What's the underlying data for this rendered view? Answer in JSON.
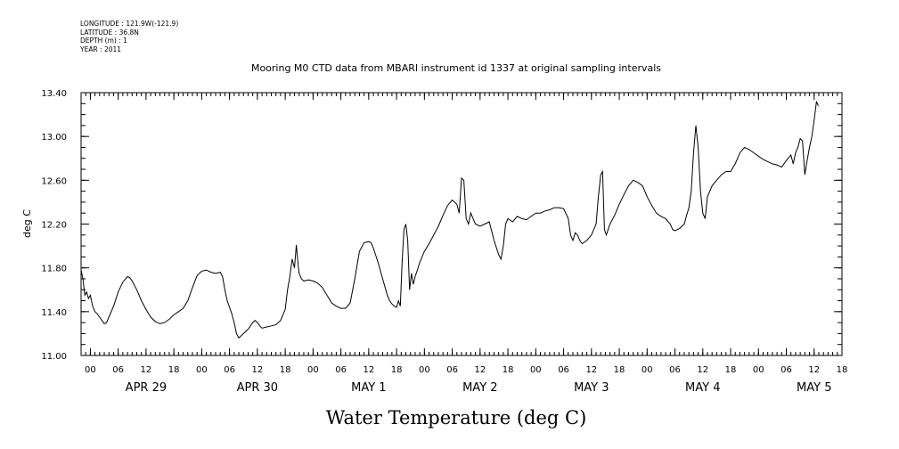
{
  "metadata": [
    "LONGITUDE : 121.9W(-121.9)",
    "LATITUDE : 36.8N",
    "DEPTH (m) : 1",
    "YEAR : 2011"
  ],
  "chart_data": {
    "type": "line",
    "title": "Mooring M0 CTD data from MBARI instrument id 1337 at original sampling intervals",
    "xlabel": "Water Temperature (deg C)",
    "ylabel": "deg C",
    "ylim": [
      11.0,
      13.4
    ],
    "yticks": [
      "11.00",
      "11.40",
      "11.80",
      "12.20",
      "12.60",
      "13.00",
      "13.40"
    ],
    "xlim_hours": [
      -2,
      162
    ],
    "hour_ticks": [
      {
        "h": 0,
        "label": "00"
      },
      {
        "h": 6,
        "label": "06"
      },
      {
        "h": 12,
        "label": "12"
      },
      {
        "h": 18,
        "label": "18"
      },
      {
        "h": 24,
        "label": "00"
      },
      {
        "h": 30,
        "label": "06"
      },
      {
        "h": 36,
        "label": "12"
      },
      {
        "h": 42,
        "label": "18"
      },
      {
        "h": 48,
        "label": "00"
      },
      {
        "h": 54,
        "label": "06"
      },
      {
        "h": 60,
        "label": "12"
      },
      {
        "h": 66,
        "label": "18"
      },
      {
        "h": 72,
        "label": "00"
      },
      {
        "h": 78,
        "label": "06"
      },
      {
        "h": 84,
        "label": "12"
      },
      {
        "h": 90,
        "label": "18"
      },
      {
        "h": 96,
        "label": "00"
      },
      {
        "h": 102,
        "label": "06"
      },
      {
        "h": 108,
        "label": "12"
      },
      {
        "h": 114,
        "label": "18"
      },
      {
        "h": 120,
        "label": "00"
      },
      {
        "h": 126,
        "label": "06"
      },
      {
        "h": 132,
        "label": "12"
      },
      {
        "h": 138,
        "label": "18"
      },
      {
        "h": 144,
        "label": "00"
      },
      {
        "h": 150,
        "label": "06"
      },
      {
        "h": 156,
        "label": "12"
      },
      {
        "h": 162,
        "label": "18"
      }
    ],
    "day_labels": [
      {
        "h": 12,
        "label": "APR 29"
      },
      {
        "h": 36,
        "label": "APR 30"
      },
      {
        "h": 60,
        "label": "MAY  1"
      },
      {
        "h": 84,
        "label": "MAY  2"
      },
      {
        "h": 108,
        "label": "MAY  3"
      },
      {
        "h": 132,
        "label": "MAY  4"
      },
      {
        "h": 156,
        "label": "MAY  5"
      }
    ],
    "series": [
      {
        "values": [
          [
            -2.0,
            11.78
          ],
          [
            -1.6,
            11.7
          ],
          [
            -1.2,
            11.55
          ],
          [
            -0.8,
            11.58
          ],
          [
            -0.4,
            11.52
          ],
          [
            0.0,
            11.55
          ],
          [
            0.5,
            11.45
          ],
          [
            1.0,
            11.4
          ],
          [
            1.5,
            11.38
          ],
          [
            2.0,
            11.35
          ],
          [
            2.5,
            11.32
          ],
          [
            3.0,
            11.29
          ],
          [
            3.5,
            11.3
          ],
          [
            4.0,
            11.35
          ],
          [
            5.0,
            11.45
          ],
          [
            6.0,
            11.58
          ],
          [
            7.0,
            11.67
          ],
          [
            8.0,
            11.72
          ],
          [
            8.5,
            11.71
          ],
          [
            9.0,
            11.68
          ],
          [
            10.0,
            11.6
          ],
          [
            11.0,
            11.5
          ],
          [
            12.0,
            11.42
          ],
          [
            13.0,
            11.35
          ],
          [
            14.0,
            11.31
          ],
          [
            15.0,
            11.29
          ],
          [
            16.0,
            11.3
          ],
          [
            17.0,
            11.33
          ],
          [
            18.0,
            11.37
          ],
          [
            19.0,
            11.4
          ],
          [
            20.0,
            11.43
          ],
          [
            21.0,
            11.5
          ],
          [
            22.0,
            11.62
          ],
          [
            23.0,
            11.73
          ],
          [
            24.0,
            11.77
          ],
          [
            25.0,
            11.78
          ],
          [
            26.0,
            11.76
          ],
          [
            27.0,
            11.75
          ],
          [
            28.0,
            11.76
          ],
          [
            28.5,
            11.72
          ],
          [
            29.0,
            11.6
          ],
          [
            29.5,
            11.5
          ],
          [
            30.0,
            11.44
          ],
          [
            30.5,
            11.38
          ],
          [
            31.0,
            11.3
          ],
          [
            31.5,
            11.2
          ],
          [
            32.0,
            11.16
          ],
          [
            32.5,
            11.18
          ],
          [
            33.0,
            11.2
          ],
          [
            34.0,
            11.24
          ],
          [
            35.0,
            11.3
          ],
          [
            35.5,
            11.32
          ],
          [
            36.0,
            11.3
          ],
          [
            36.5,
            11.27
          ],
          [
            37.0,
            11.25
          ],
          [
            38.0,
            11.26
          ],
          [
            39.0,
            11.27
          ],
          [
            40.0,
            11.28
          ],
          [
            41.0,
            11.32
          ],
          [
            42.0,
            11.42
          ],
          [
            42.5,
            11.6
          ],
          [
            43.0,
            11.72
          ],
          [
            43.5,
            11.88
          ],
          [
            44.0,
            11.8
          ],
          [
            44.4,
            12.01
          ],
          [
            44.8,
            11.82
          ],
          [
            45.0,
            11.75
          ],
          [
            45.5,
            11.7
          ],
          [
            46.0,
            11.68
          ],
          [
            47.0,
            11.69
          ],
          [
            48.0,
            11.68
          ],
          [
            49.0,
            11.66
          ],
          [
            50.0,
            11.62
          ],
          [
            51.0,
            11.55
          ],
          [
            52.0,
            11.48
          ],
          [
            53.0,
            11.45
          ],
          [
            54.0,
            11.43
          ],
          [
            55.0,
            11.43
          ],
          [
            56.0,
            11.48
          ],
          [
            57.0,
            11.7
          ],
          [
            58.0,
            11.95
          ],
          [
            59.0,
            12.03
          ],
          [
            60.0,
            12.04
          ],
          [
            60.5,
            12.03
          ],
          [
            61.0,
            11.98
          ],
          [
            62.0,
            11.85
          ],
          [
            63.0,
            11.7
          ],
          [
            64.0,
            11.55
          ],
          [
            64.5,
            11.5
          ],
          [
            65.0,
            11.47
          ],
          [
            65.5,
            11.45
          ],
          [
            66.0,
            11.44
          ],
          [
            66.4,
            11.5
          ],
          [
            66.8,
            11.45
          ],
          [
            67.2,
            11.85
          ],
          [
            67.6,
            12.15
          ],
          [
            68.0,
            12.2
          ],
          [
            68.4,
            12.05
          ],
          [
            68.8,
            11.6
          ],
          [
            69.2,
            11.75
          ],
          [
            69.6,
            11.65
          ],
          [
            70.0,
            11.72
          ],
          [
            70.5,
            11.78
          ],
          [
            71.0,
            11.85
          ],
          [
            72.0,
            11.95
          ],
          [
            73.0,
            12.02
          ],
          [
            74.0,
            12.1
          ],
          [
            75.0,
            12.18
          ],
          [
            76.0,
            12.28
          ],
          [
            77.0,
            12.37
          ],
          [
            78.0,
            12.42
          ],
          [
            79.0,
            12.38
          ],
          [
            79.5,
            12.3
          ],
          [
            80.0,
            12.62
          ],
          [
            80.5,
            12.6
          ],
          [
            81.0,
            12.25
          ],
          [
            81.5,
            12.2
          ],
          [
            82.0,
            12.3
          ],
          [
            82.5,
            12.25
          ],
          [
            83.0,
            12.2
          ],
          [
            84.0,
            12.18
          ],
          [
            85.0,
            12.2
          ],
          [
            86.0,
            12.22
          ],
          [
            87.0,
            12.05
          ],
          [
            88.0,
            11.92
          ],
          [
            88.5,
            11.88
          ],
          [
            89.0,
            12.0
          ],
          [
            89.5,
            12.2
          ],
          [
            90.0,
            12.25
          ],
          [
            91.0,
            12.22
          ],
          [
            92.0,
            12.27
          ],
          [
            93.0,
            12.25
          ],
          [
            94.0,
            12.24
          ],
          [
            95.0,
            12.27
          ],
          [
            96.0,
            12.3
          ],
          [
            97.0,
            12.3
          ],
          [
            98.0,
            12.32
          ],
          [
            99.0,
            12.33
          ],
          [
            100.0,
            12.35
          ],
          [
            101.0,
            12.35
          ],
          [
            102.0,
            12.34
          ],
          [
            103.0,
            12.25
          ],
          [
            103.5,
            12.1
          ],
          [
            104.0,
            12.05
          ],
          [
            104.5,
            12.12
          ],
          [
            105.0,
            12.1
          ],
          [
            105.5,
            12.05
          ],
          [
            106.0,
            12.02
          ],
          [
            107.0,
            12.05
          ],
          [
            108.0,
            12.1
          ],
          [
            109.0,
            12.2
          ],
          [
            109.5,
            12.45
          ],
          [
            110.0,
            12.65
          ],
          [
            110.4,
            12.68
          ],
          [
            110.8,
            12.15
          ],
          [
            111.2,
            12.1
          ],
          [
            112.0,
            12.2
          ],
          [
            113.0,
            12.28
          ],
          [
            114.0,
            12.38
          ],
          [
            115.0,
            12.47
          ],
          [
            116.0,
            12.55
          ],
          [
            117.0,
            12.6
          ],
          [
            118.0,
            12.58
          ],
          [
            119.0,
            12.55
          ],
          [
            120.0,
            12.45
          ],
          [
            121.0,
            12.37
          ],
          [
            122.0,
            12.3
          ],
          [
            123.0,
            12.27
          ],
          [
            124.0,
            12.25
          ],
          [
            125.0,
            12.2
          ],
          [
            125.5,
            12.15
          ],
          [
            126.0,
            12.14
          ],
          [
            127.0,
            12.16
          ],
          [
            128.0,
            12.2
          ],
          [
            128.5,
            12.28
          ],
          [
            129.0,
            12.35
          ],
          [
            129.5,
            12.5
          ],
          [
            130.0,
            12.85
          ],
          [
            130.5,
            13.1
          ],
          [
            131.0,
            12.9
          ],
          [
            131.5,
            12.5
          ],
          [
            132.0,
            12.3
          ],
          [
            132.5,
            12.25
          ],
          [
            133.0,
            12.45
          ],
          [
            134.0,
            12.55
          ],
          [
            135.0,
            12.6
          ],
          [
            136.0,
            12.65
          ],
          [
            137.0,
            12.68
          ],
          [
            138.0,
            12.68
          ],
          [
            139.0,
            12.75
          ],
          [
            140.0,
            12.85
          ],
          [
            141.0,
            12.9
          ],
          [
            142.0,
            12.88
          ],
          [
            143.0,
            12.85
          ],
          [
            144.0,
            12.82
          ],
          [
            145.0,
            12.79
          ],
          [
            146.0,
            12.77
          ],
          [
            147.0,
            12.75
          ],
          [
            148.0,
            12.74
          ],
          [
            149.0,
            12.72
          ],
          [
            150.0,
            12.78
          ],
          [
            151.0,
            12.83
          ],
          [
            151.5,
            12.75
          ],
          [
            152.0,
            12.85
          ],
          [
            152.5,
            12.9
          ],
          [
            153.0,
            12.98
          ],
          [
            153.5,
            12.96
          ],
          [
            154.0,
            12.65
          ],
          [
            154.5,
            12.78
          ],
          [
            155.0,
            12.9
          ],
          [
            155.5,
            13.0
          ],
          [
            156.0,
            13.15
          ],
          [
            156.5,
            13.32
          ],
          [
            156.9,
            13.28
          ]
        ]
      }
    ]
  }
}
